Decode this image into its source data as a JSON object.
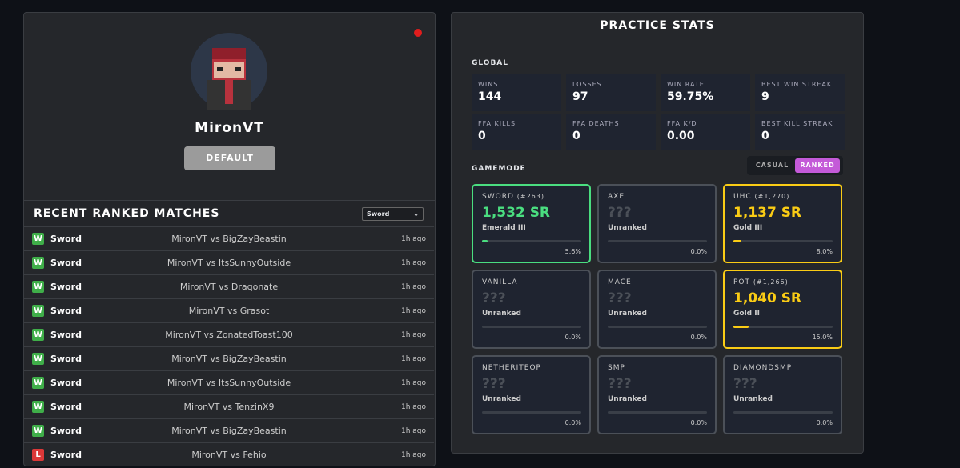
{
  "profile": {
    "name": "MironVT",
    "badge": "DEFAULT"
  },
  "matches": {
    "title": "RECENT RANKED MATCHES",
    "filter": "Sword",
    "rows": [
      {
        "result": "W",
        "mode": "Sword",
        "players": "MironVT vs BigZayBeastin",
        "time": "1h ago"
      },
      {
        "result": "W",
        "mode": "Sword",
        "players": "MironVT vs ItsSunnyOutside",
        "time": "1h ago"
      },
      {
        "result": "W",
        "mode": "Sword",
        "players": "MironVT vs Draqonate",
        "time": "1h ago"
      },
      {
        "result": "W",
        "mode": "Sword",
        "players": "MironVT vs Grasot",
        "time": "1h ago"
      },
      {
        "result": "W",
        "mode": "Sword",
        "players": "MironVT vs ZonatedToast100",
        "time": "1h ago"
      },
      {
        "result": "W",
        "mode": "Sword",
        "players": "MironVT vs BigZayBeastin",
        "time": "1h ago"
      },
      {
        "result": "W",
        "mode": "Sword",
        "players": "MironVT vs ItsSunnyOutside",
        "time": "1h ago"
      },
      {
        "result": "W",
        "mode": "Sword",
        "players": "MironVT vs TenzinX9",
        "time": "1h ago"
      },
      {
        "result": "W",
        "mode": "Sword",
        "players": "MironVT vs BigZayBeastin",
        "time": "1h ago"
      },
      {
        "result": "L",
        "mode": "Sword",
        "players": "MironVT vs Fehio",
        "time": "1h ago"
      }
    ]
  },
  "stats": {
    "title": "PRACTICE STATS",
    "global_label": "GLOBAL",
    "global": [
      {
        "label": "WINS",
        "value": "144"
      },
      {
        "label": "LOSSES",
        "value": "97"
      },
      {
        "label": "WIN RATE",
        "value": "59.75%"
      },
      {
        "label": "BEST WIN STREAK",
        "value": "9"
      },
      {
        "label": "FFA KILLS",
        "value": "0"
      },
      {
        "label": "FFA DEATHS",
        "value": "0"
      },
      {
        "label": "FFA K/D",
        "value": "0.00"
      },
      {
        "label": "BEST KILL STREAK",
        "value": "0"
      }
    ],
    "gamemode_label": "GAMEMODE",
    "tabs": [
      "CASUAL",
      "RANKED"
    ],
    "modes": [
      {
        "name": "SWORD",
        "rank": "(#263)",
        "sr": "1,532 SR",
        "tier": "Emerald III",
        "progress": {
          "value": 5.6,
          "label": "5.6%"
        },
        "color": "#4ade80"
      },
      {
        "name": "AXE",
        "sr": "???",
        "tier": "Unranked",
        "progress": {
          "value": 0,
          "label": "0.0%"
        },
        "color": "#4b5058"
      },
      {
        "name": "UHC",
        "rank": "(#1,270)",
        "sr": "1,137 SR",
        "tier": "Gold III",
        "progress": {
          "value": 8,
          "label": "8.0%"
        },
        "color": "#facc15"
      },
      {
        "name": "VANILLA",
        "sr": "???",
        "tier": "Unranked",
        "progress": {
          "value": 0,
          "label": "0.0%"
        },
        "color": "#4b5058"
      },
      {
        "name": "MACE",
        "sr": "???",
        "tier": "Unranked",
        "progress": {
          "value": 0,
          "label": "0.0%"
        },
        "color": "#4b5058"
      },
      {
        "name": "POT",
        "rank": "(#1,266)",
        "sr": "1,040 SR",
        "tier": "Gold II",
        "progress": {
          "value": 15,
          "label": "15.0%"
        },
        "color": "#facc15"
      },
      {
        "name": "NETHERITEOP",
        "sr": "???",
        "tier": "Unranked",
        "progress": {
          "value": 0,
          "label": "0.0%"
        },
        "color": "#4b5058"
      },
      {
        "name": "SMP",
        "sr": "???",
        "tier": "Unranked",
        "progress": {
          "value": 0,
          "label": "0.0%"
        },
        "color": "#4b5058"
      },
      {
        "name": "DIAMONDSMP",
        "sr": "???",
        "tier": "Unranked",
        "progress": {
          "value": 0,
          "label": "0.0%"
        },
        "color": "#4b5058"
      }
    ]
  }
}
